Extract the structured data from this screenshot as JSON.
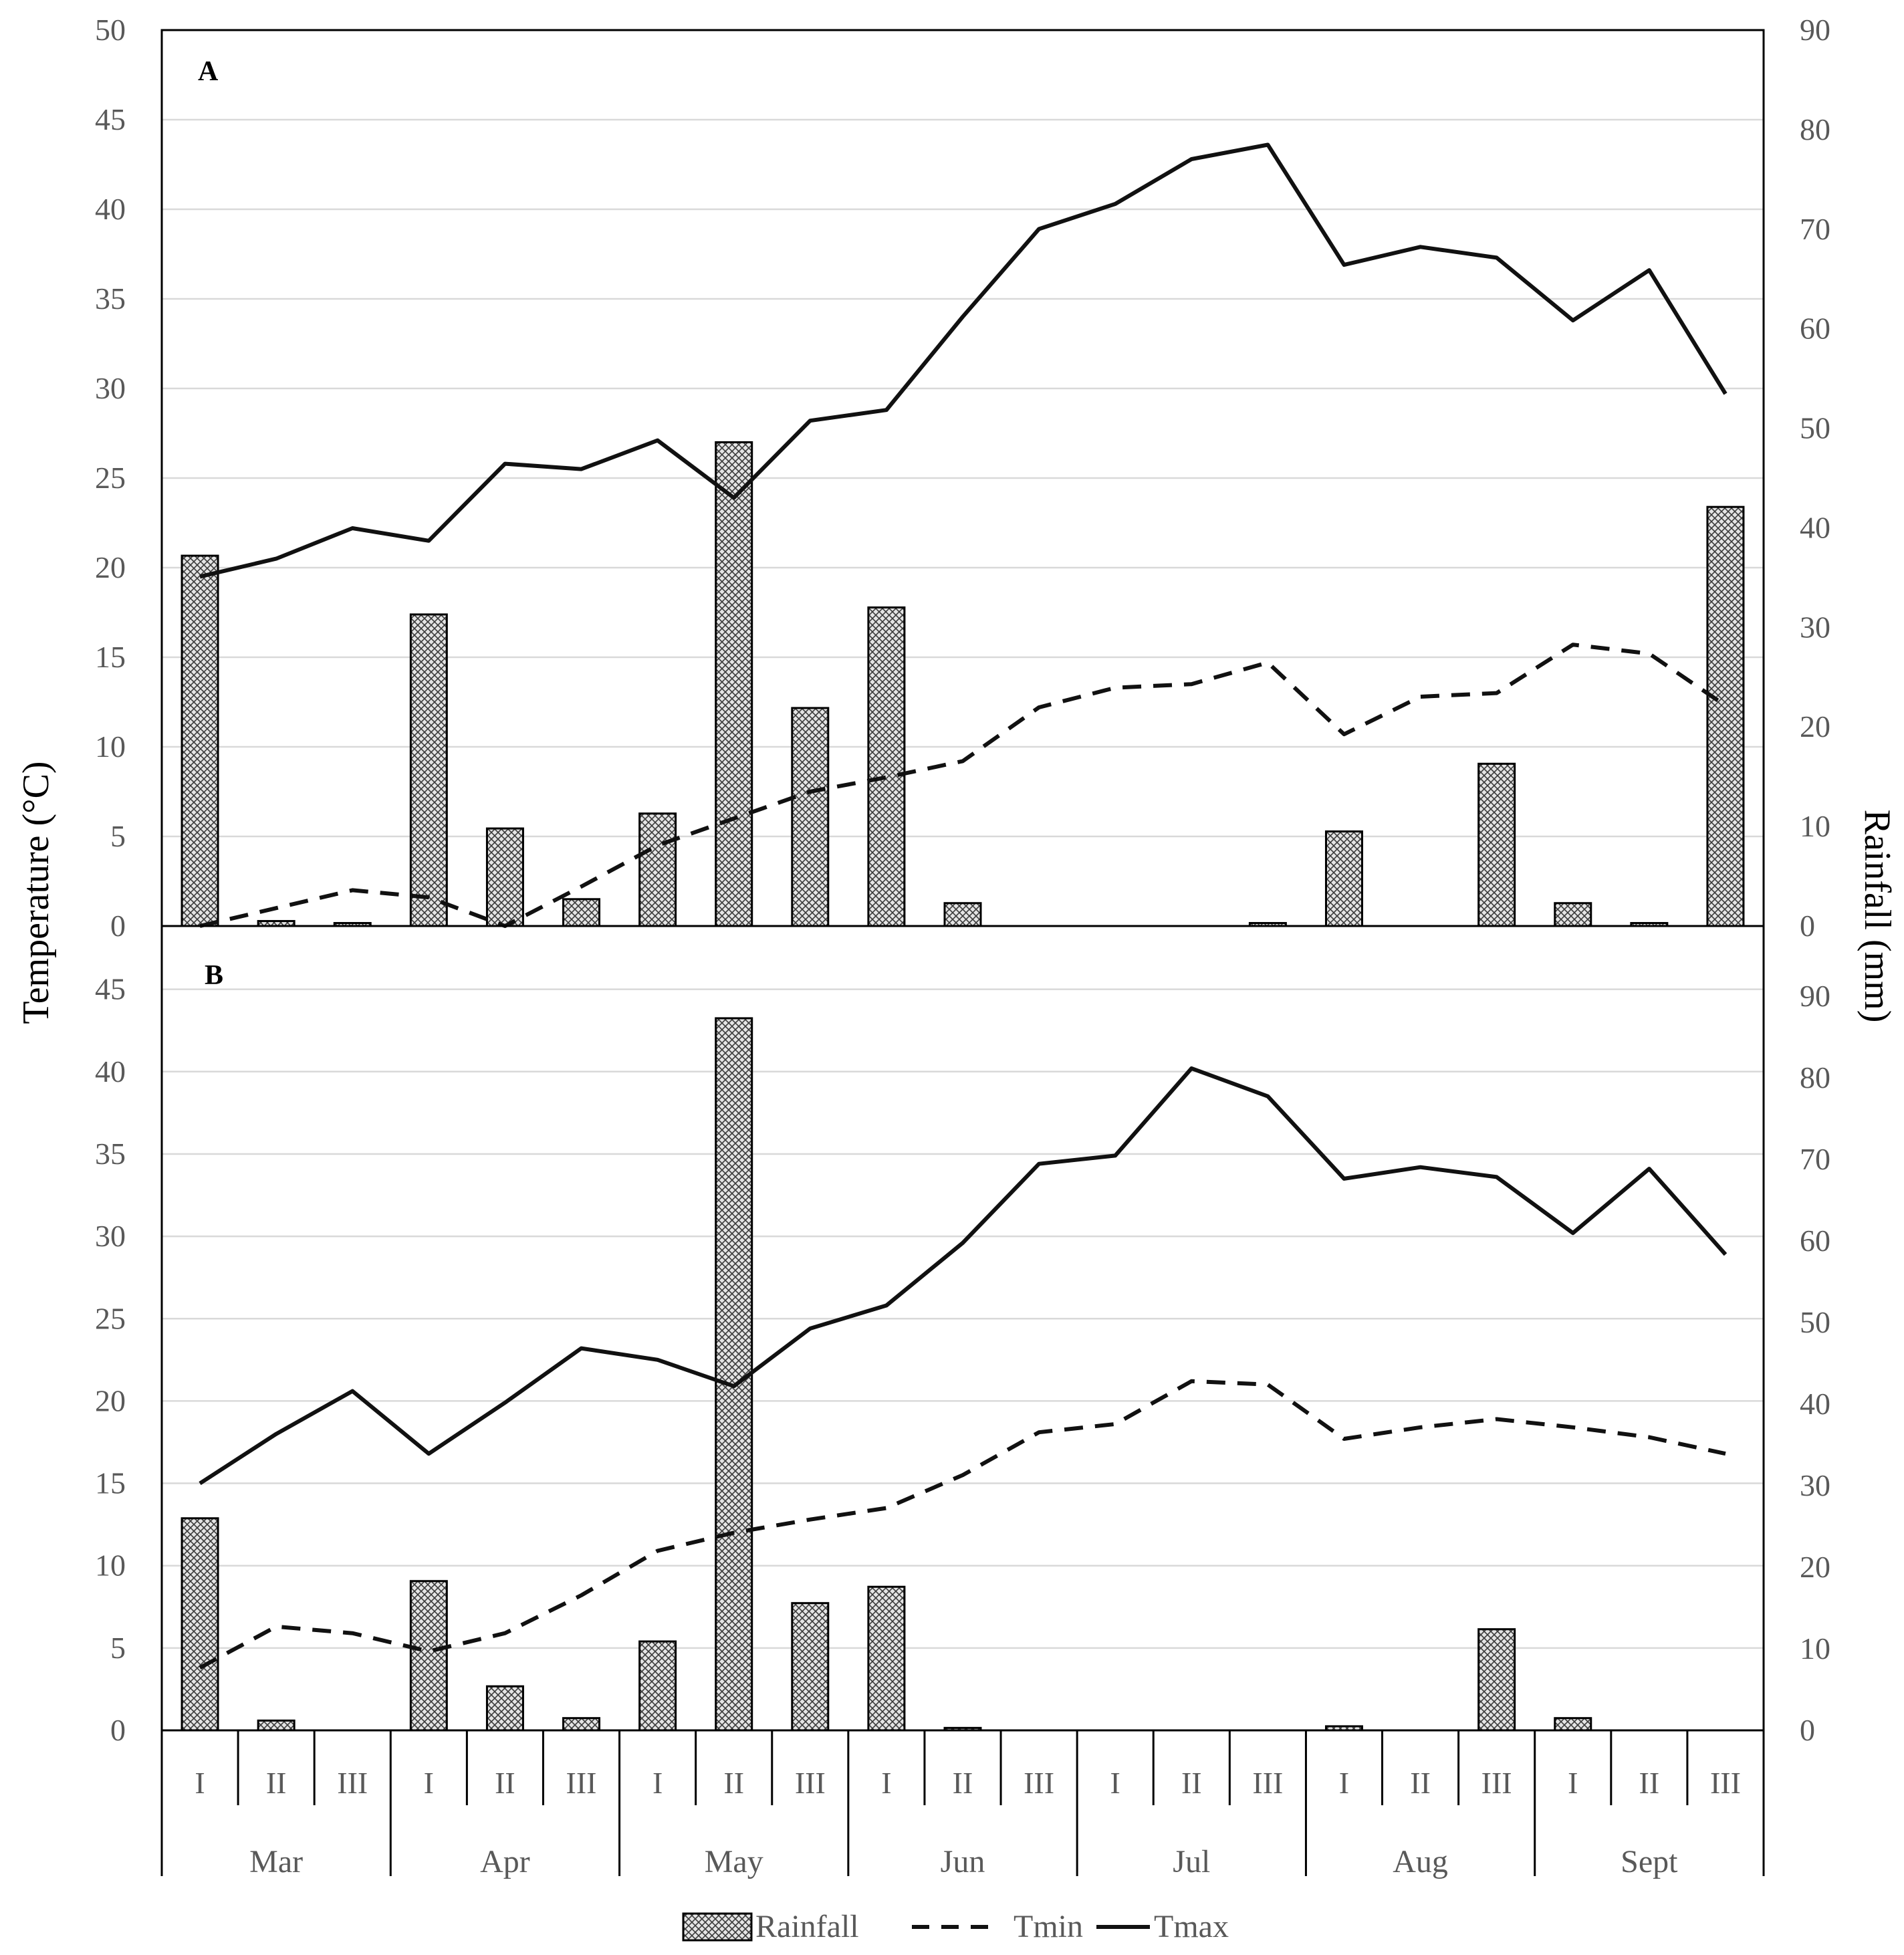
{
  "chart_data": [
    {
      "panel": "A",
      "type": "bar+line",
      "left_axis": {
        "label": "Temperature (°C)",
        "ylim": [
          0,
          50
        ],
        "ticks": [
          0,
          5,
          10,
          15,
          20,
          25,
          30,
          35,
          40,
          45,
          50
        ]
      },
      "right_axis": {
        "label": "Rainfall (mm)",
        "ylim": [
          0,
          90
        ],
        "ticks": [
          0,
          10,
          20,
          30,
          40,
          50,
          60,
          70,
          80,
          90
        ]
      },
      "categories": [
        "I",
        "II",
        "III",
        "I",
        "II",
        "III",
        "I",
        "II",
        "III",
        "I",
        "II",
        "III",
        "I",
        "II",
        "III",
        "I",
        "II",
        "III",
        "I",
        "II",
        "III"
      ],
      "months": [
        "Mar",
        "Apr",
        "May",
        "Jun",
        "Jul",
        "Aug",
        "Sept"
      ],
      "series": [
        {
          "name": "Rainfall",
          "type": "bar",
          "axis": "right",
          "values": [
            37.2,
            0.5,
            0.3,
            31.3,
            9.8,
            2.7,
            11.3,
            48.6,
            21.9,
            32.0,
            2.3,
            0,
            0,
            0,
            0.3,
            9.5,
            0,
            16.3,
            2.3,
            0.3,
            42.1
          ]
        },
        {
          "name": "Tmin",
          "type": "line",
          "dash": true,
          "axis": "left",
          "values": [
            0,
            1.0,
            2.0,
            1.6,
            0,
            2.2,
            4.5,
            6.0,
            7.5,
            8.3,
            9.2,
            12.2,
            13.3,
            13.5,
            14.7,
            10.7,
            12.8,
            13.0,
            15.7,
            15.2,
            12.3
          ]
        },
        {
          "name": "Tmax",
          "type": "line",
          "dash": false,
          "axis": "left",
          "values": [
            19.5,
            20.5,
            22.2,
            21.5,
            25.8,
            25.5,
            27.1,
            23.9,
            28.2,
            28.8,
            34.0,
            38.9,
            40.3,
            42.8,
            43.6,
            36.9,
            37.9,
            37.3,
            33.8,
            36.6,
            29.7
          ]
        }
      ]
    },
    {
      "panel": "B",
      "type": "bar+line",
      "left_axis": {
        "label": "Temperature (°C)",
        "ylim": [
          0,
          50
        ],
        "ticks": [
          0,
          5,
          10,
          15,
          20,
          25,
          30,
          35,
          40,
          45
        ]
      },
      "right_axis": {
        "label": "Rainfall (mm)",
        "ylim": [
          0,
          100
        ],
        "ticks": [
          0,
          10,
          20,
          30,
          40,
          50,
          60,
          70,
          80,
          90
        ]
      },
      "categories": [
        "I",
        "II",
        "III",
        "I",
        "II",
        "III",
        "I",
        "II",
        "III",
        "I",
        "II",
        "III",
        "I",
        "II",
        "III",
        "I",
        "II",
        "III",
        "I",
        "II",
        "III"
      ],
      "months": [
        "Mar",
        "Apr",
        "May",
        "Jun",
        "Jul",
        "Aug",
        "Sept"
      ],
      "series": [
        {
          "name": "Rainfall",
          "type": "bar",
          "axis": "right",
          "values": [
            26.0,
            1.2,
            0,
            18.3,
            5.4,
            1.5,
            10.9,
            87.3,
            15.6,
            17.6,
            0.3,
            0,
            0,
            0,
            0,
            0.5,
            0,
            12.4,
            1.5,
            0,
            0
          ]
        },
        {
          "name": "Tmin",
          "type": "line",
          "dash": true,
          "axis": "left",
          "values": [
            3.8,
            6.3,
            5.9,
            4.8,
            5.9,
            8.2,
            10.9,
            12.0,
            12.8,
            13.5,
            15.5,
            18.1,
            18.6,
            21.2,
            21.0,
            17.7,
            18.4,
            18.9,
            18.4,
            17.8,
            16.8
          ]
        },
        {
          "name": "Tmax",
          "type": "line",
          "dash": false,
          "axis": "left",
          "values": [
            15.0,
            18.0,
            20.6,
            16.8,
            19.9,
            23.2,
            22.5,
            20.9,
            24.4,
            25.8,
            29.6,
            34.4,
            34.9,
            40.2,
            38.5,
            33.5,
            34.2,
            33.6,
            30.2,
            34.1,
            28.9
          ]
        }
      ]
    }
  ],
  "legend": {
    "items": [
      "Rainfall",
      "Tmin",
      "Tmax"
    ]
  },
  "colors": {
    "line": "#111111",
    "grid": "#d9d9d9",
    "bar_fill": "#b5b5b5",
    "tick_text": "#595959"
  }
}
